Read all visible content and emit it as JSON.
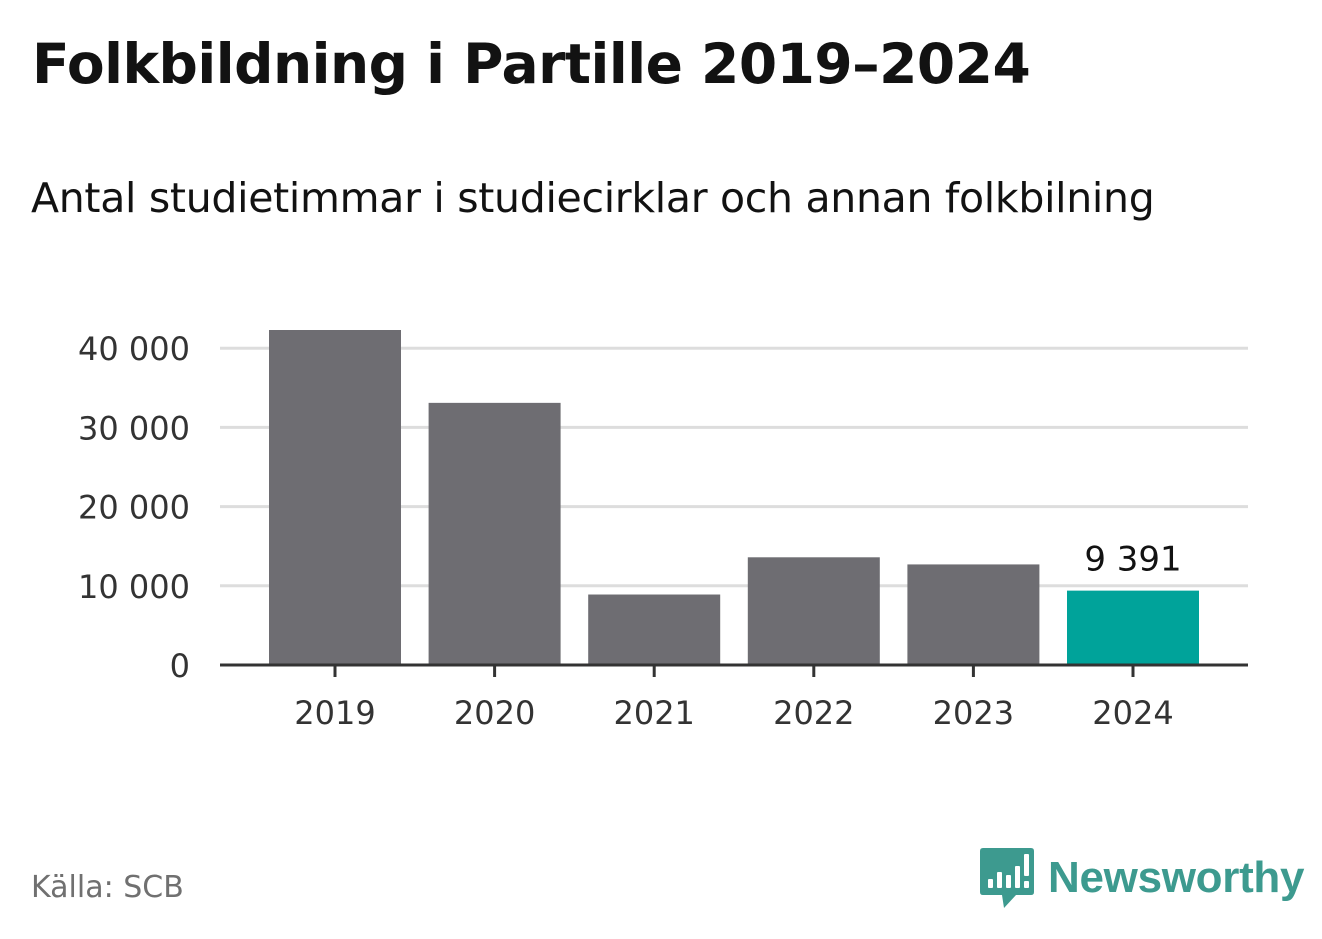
{
  "header": {
    "title": "Folkbildning i Partille 2019–2024",
    "subtitle": "Antal studietimmar i studiecirklar och annan folkbilning"
  },
  "footer": {
    "source": "Källa: SCB",
    "brand_name": "Newsworthy",
    "brand_icon": "bar-chart-speech-bubble-icon"
  },
  "colors": {
    "bar_default": "#6e6d72",
    "bar_highlight": "#00a39a",
    "gridline": "#dddddd",
    "axis": "#333333",
    "brand": "#3d9a8f"
  },
  "chart_data": {
    "type": "bar",
    "title": "Folkbildning i Partille 2019–2024",
    "subtitle": "Antal studietimmar i studiecirklar och annan folkbilning",
    "categories": [
      "2019",
      "2020",
      "2021",
      "2022",
      "2023",
      "2024"
    ],
    "values": [
      42300,
      33100,
      8900,
      13600,
      12700,
      9391
    ],
    "highlight_index": 5,
    "data_labels": [
      {
        "index": 5,
        "text": "9 391"
      }
    ],
    "ylim": [
      0,
      42300
    ],
    "yticks": [
      0,
      10000,
      20000,
      30000,
      40000
    ],
    "ytick_labels": [
      "0",
      "10 000",
      "20 000",
      "30 000",
      "40 000"
    ],
    "xlabel": "",
    "ylabel": "",
    "grid": true,
    "legend": "none"
  }
}
